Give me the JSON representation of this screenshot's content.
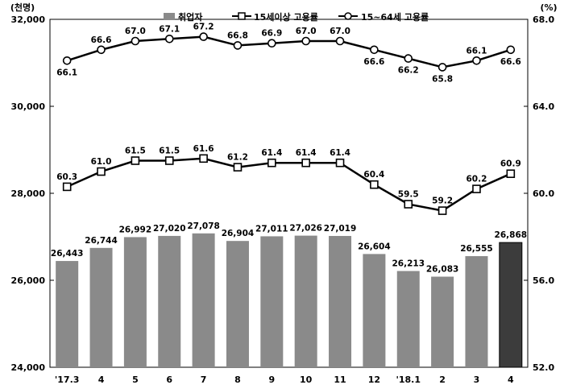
{
  "chart_data": {
    "type": "bar+line",
    "left_axis_unit": "(천명)",
    "right_axis_unit": "(%)",
    "left_ylim": [
      24000,
      32000
    ],
    "right_ylim": [
      52.0,
      68.0
    ],
    "left_ticks": [
      "24,000",
      "26,000",
      "28,000",
      "30,000",
      "32,000"
    ],
    "left_tick_values": [
      24000,
      26000,
      28000,
      30000,
      32000
    ],
    "right_ticks": [
      "52.0",
      "56.0",
      "60.0",
      "64.0",
      "68.0"
    ],
    "right_tick_values": [
      52,
      56,
      60,
      64,
      68
    ],
    "categories": [
      "'17.3",
      "4",
      "5",
      "6",
      "7",
      "8",
      "9",
      "10",
      "11",
      "12",
      "'18.1",
      "2",
      "3",
      "4"
    ],
    "legend": {
      "bar": "취업자",
      "line1": "15세이상 고용률",
      "line2": "15~64세 고용률"
    },
    "series": [
      {
        "name": "취업자",
        "kind": "bar",
        "axis": "left",
        "values": [
          26443,
          26744,
          26992,
          27020,
          27078,
          26904,
          27011,
          27026,
          27019,
          26604,
          26213,
          26083,
          26555,
          26868
        ],
        "labels": [
          "26,443",
          "26,744",
          "26,992",
          "27,020",
          "27,078",
          "26,904",
          "27,011",
          "27,026",
          "27,019",
          "26,604",
          "26,213",
          "26,083",
          "26,555",
          "26,868"
        ],
        "highlight_index": 13
      },
      {
        "name": "15세이상 고용률",
        "kind": "line",
        "marker": "square",
        "axis": "right",
        "values": [
          60.3,
          61.0,
          61.5,
          61.5,
          61.6,
          61.2,
          61.4,
          61.4,
          61.4,
          60.4,
          59.5,
          59.2,
          60.2,
          60.9
        ],
        "labels": [
          "60.3",
          "61.0",
          "61.5",
          "61.5",
          "61.6",
          "61.2",
          "61.4",
          "61.4",
          "61.4",
          "60.4",
          "59.5",
          "59.2",
          "60.2",
          "60.9"
        ]
      },
      {
        "name": "15~64세 고용률",
        "kind": "line",
        "marker": "circle",
        "axis": "right",
        "values": [
          66.1,
          66.6,
          67.0,
          67.1,
          67.2,
          66.8,
          66.9,
          67.0,
          67.0,
          66.6,
          66.2,
          65.8,
          66.1,
          66.6
        ],
        "labels": [
          "66.1",
          "66.6",
          "67.0",
          "67.1",
          "67.2",
          "66.8",
          "66.9",
          "67.0",
          "67.0",
          "66.6",
          "66.2",
          "65.8",
          "66.1",
          "66.6"
        ]
      }
    ],
    "colors": {
      "bar": "#8a8a8a",
      "bar_highlight": "#3c3c3c",
      "line": "#000000",
      "marker_fill": "#ffffff"
    }
  }
}
